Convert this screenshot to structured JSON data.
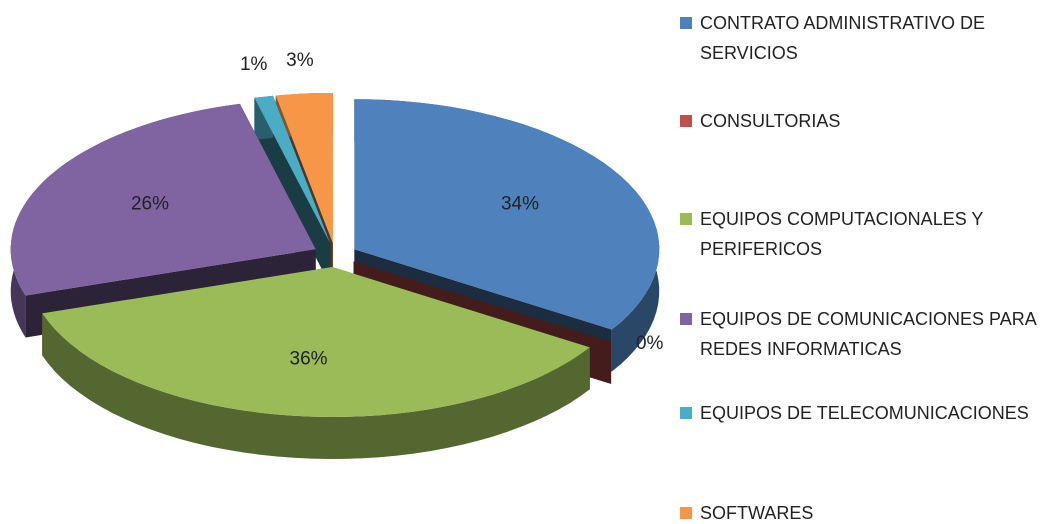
{
  "chart_data": {
    "type": "pie",
    "categories": [
      "CONTRATO ADMINISTRATIVO DE SERVICIOS",
      "CONSULTORIAS",
      "EQUIPOS COMPUTACIONALES Y PERIFERICOS",
      "EQUIPOS DE COMUNICACIONES PARA REDES INFORMATICAS",
      "EQUIPOS DE TELECOMUNICACIONES",
      "SOFTWARES"
    ],
    "values": [
      34,
      0,
      36,
      26,
      1,
      3
    ],
    "value_labels": [
      "34%",
      "0%",
      "36%",
      "26%",
      "1%",
      "3%"
    ],
    "colors": [
      "#4f81bd",
      "#c0504d",
      "#9bbb59",
      "#8064a2",
      "#4bacc6",
      "#f79646"
    ],
    "legend": "right"
  }
}
